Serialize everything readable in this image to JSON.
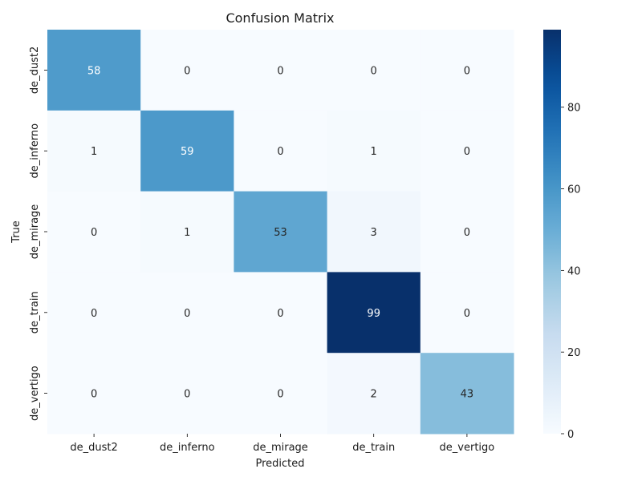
{
  "chart_data": {
    "type": "heatmap",
    "title": "Confusion Matrix",
    "xlabel": "Predicted",
    "ylabel": "True",
    "x_categories": [
      "de_dust2",
      "de_inferno",
      "de_mirage",
      "de_train",
      "de_vertigo"
    ],
    "y_categories": [
      "de_dust2",
      "de_inferno",
      "de_mirage",
      "de_train",
      "de_vertigo"
    ],
    "matrix": [
      [
        58,
        0,
        0,
        0,
        0
      ],
      [
        1,
        59,
        0,
        1,
        0
      ],
      [
        0,
        1,
        53,
        3,
        0
      ],
      [
        0,
        0,
        0,
        99,
        0
      ],
      [
        0,
        0,
        0,
        2,
        43
      ]
    ],
    "colormap": "Blues",
    "vmin": 0,
    "vmax": 99,
    "colorbar_ticks": [
      0,
      20,
      40,
      60,
      80
    ],
    "annotations": true
  }
}
